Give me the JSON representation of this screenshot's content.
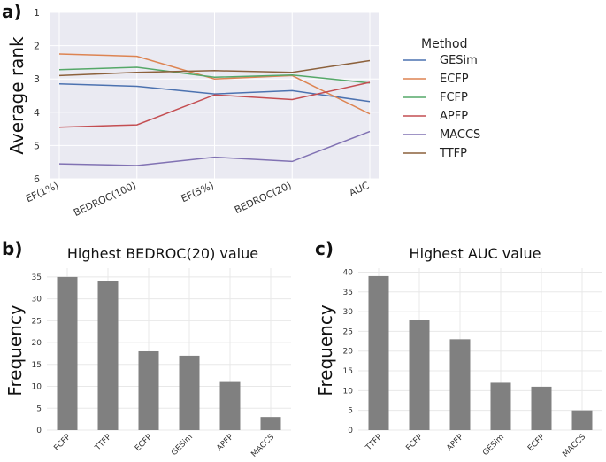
{
  "panel_labels": {
    "a": "a)",
    "b": "b)",
    "c": "c)"
  },
  "chart_data": [
    {
      "type": "line",
      "panel": "a)",
      "title": "",
      "xlabel": "",
      "ylabel": "Average rank",
      "categories": [
        "EF(1%)",
        "BEDROC(100)",
        "EF(5%)",
        "BEDROC(20)",
        "AUC"
      ],
      "yticks": [
        "1",
        "2",
        "3",
        "4",
        "5",
        "6"
      ],
      "ylim": [
        1,
        6
      ],
      "y_inverted": true,
      "legend_title": "Method",
      "legend_position": "right",
      "series": [
        {
          "name": "GESim",
          "color": "#4c72b0",
          "values": [
            3.15,
            3.22,
            3.45,
            3.35,
            3.68
          ]
        },
        {
          "name": "ECFP",
          "color": "#dd8452",
          "values": [
            2.25,
            2.32,
            3.0,
            2.9,
            4.05
          ]
        },
        {
          "name": "FCFP",
          "color": "#55a868",
          "values": [
            2.72,
            2.65,
            2.95,
            2.88,
            3.12
          ]
        },
        {
          "name": "APFP",
          "color": "#c44e52",
          "values": [
            4.45,
            4.38,
            3.48,
            3.62,
            3.1
          ]
        },
        {
          "name": "MACCS",
          "color": "#8172b3",
          "values": [
            5.55,
            5.6,
            5.35,
            5.48,
            4.58
          ]
        },
        {
          "name": "TTFP",
          "color": "#8c613c",
          "values": [
            2.9,
            2.8,
            2.75,
            2.8,
            2.45
          ]
        }
      ]
    },
    {
      "type": "bar",
      "panel": "b)",
      "title": "Highest BEDROC(20) value",
      "xlabel": "",
      "ylabel": "Frequency",
      "categories": [
        "FCFP",
        "TTFP",
        "ECFP",
        "GESim",
        "APFP",
        "MACCS"
      ],
      "values": [
        35,
        34,
        18,
        17,
        11,
        3
      ],
      "yticks": [
        "0",
        "5",
        "10",
        "15",
        "20",
        "25",
        "30",
        "35"
      ],
      "ylim": [
        0,
        37
      ],
      "bar_color": "#808080"
    },
    {
      "type": "bar",
      "panel": "c)",
      "title": "Highest AUC value",
      "xlabel": "",
      "ylabel": "Frequency",
      "categories": [
        "TTFP",
        "FCFP",
        "APFP",
        "GESim",
        "ECFP",
        "MACCS"
      ],
      "values": [
        39,
        28,
        23,
        12,
        11,
        5
      ],
      "yticks": [
        "0",
        "5",
        "10",
        "15",
        "20",
        "25",
        "30",
        "35",
        "40"
      ],
      "ylim": [
        0,
        41
      ],
      "bar_color": "#808080"
    }
  ]
}
